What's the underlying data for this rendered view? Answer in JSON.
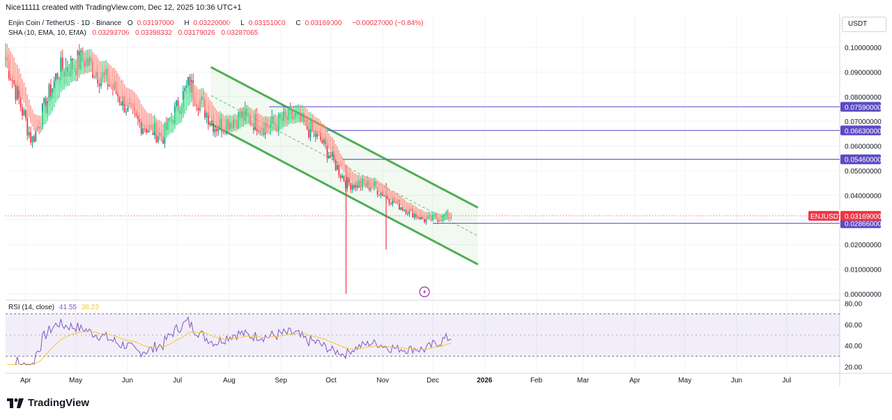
{
  "header": {
    "attribution": "Nice11111 created with TradingView.com, Dec 12, 2025 10:36 UTC+1"
  },
  "legend": {
    "symbol": "Enjin Coin / TetherUS · 1D · Binance",
    "o_label": "O",
    "o": "0.03197000",
    "h_label": "H",
    "h": "0.03220000",
    "l_label": "L",
    "l": "0.03151000",
    "c_label": "C",
    "c": "0.03169000",
    "change": "−0.00027000 (−0.84%)",
    "indicator": "SHA (10, EMA, 10, EMA)",
    "ind_v1": "0.03293706",
    "ind_v2": "0.03398332",
    "ind_v3": "0.03179026",
    "ind_v4": "0.03287065"
  },
  "currency_button": "USDT",
  "rsi": {
    "label": "RSI (14, close)",
    "value": "41.55",
    "ma_value": "38.23",
    "ticks": [
      "80.00",
      "60.00",
      "40.00",
      "20.00"
    ]
  },
  "footer": {
    "brand": "TradingView"
  },
  "colors": {
    "up": "#089981",
    "down": "#f23645",
    "channel": "#4caf50",
    "level_line": "#6a5acd",
    "level_tag": "#5b4bc4",
    "price_tag": "#f23645",
    "rsi_line": "#7e57c2",
    "rsi_ma": "#f7c530"
  },
  "chart_data": {
    "type": "candlestick",
    "symbol": "ENJUSDT",
    "y_axis_ticks": [
      "0.10000000",
      "0.09000000",
      "0.08000000",
      "0.07000000",
      "0.06000000",
      "0.05000000",
      "0.04000000",
      "0.03000000",
      "0.02000000",
      "0.01000000",
      "0.00000000"
    ],
    "ylim": [
      0.0,
      0.106
    ],
    "x_axis_labels": [
      "Apr",
      "May",
      "Jun",
      "Jul",
      "Aug",
      "Sep",
      "Oct",
      "Nov",
      "Dec",
      "2026",
      "Feb",
      "Mar",
      "Apr",
      "May",
      "Jun",
      "Jul"
    ],
    "horizontal_levels": [
      {
        "price": 0.0759,
        "label": "0.07590000"
      },
      {
        "price": 0.0663,
        "label": "0.06630000"
      },
      {
        "price": 0.0546,
        "label": "0.05460000"
      },
      {
        "price": 0.02866,
        "label": "0.02866000"
      }
    ],
    "current_price": {
      "label": "ENJUSDT",
      "value": "0.03169000",
      "price": 0.03169
    },
    "descending_channel": {
      "upper": {
        "start": [
          "2025-07-21",
          0.092
        ],
        "end": [
          "2025-12-28",
          0.035
        ]
      },
      "lower": {
        "start": [
          "2025-07-21",
          0.069
        ],
        "end": [
          "2025-12-28",
          0.012
        ]
      }
    },
    "approx_close_series": [
      {
        "month": "Apr",
        "close": 0.096
      },
      {
        "month": "Apr-mid",
        "close": 0.062
      },
      {
        "month": "May",
        "close": 0.09
      },
      {
        "month": "May-mid",
        "close": 0.095
      },
      {
        "month": "Jun",
        "close": 0.085
      },
      {
        "month": "Jun-mid",
        "close": 0.07
      },
      {
        "month": "Jul",
        "close": 0.064
      },
      {
        "month": "Jul-mid",
        "close": 0.085
      },
      {
        "month": "Aug",
        "close": 0.068
      },
      {
        "month": "Aug-mid",
        "close": 0.072
      },
      {
        "month": "Sep",
        "close": 0.068
      },
      {
        "month": "Sep-mid",
        "close": 0.072
      },
      {
        "month": "Oct",
        "close": 0.063
      },
      {
        "month": "Oct-mid",
        "close": 0.045
      },
      {
        "month": "Nov",
        "close": 0.044
      },
      {
        "month": "Nov-mid",
        "close": 0.036
      },
      {
        "month": "Dec",
        "close": 0.03
      },
      {
        "month": "Dec-12",
        "close": 0.0317
      }
    ],
    "rsi_ylim": [
      20,
      80
    ],
    "rsi_band": [
      30,
      70
    ],
    "rsi_mid": 50
  }
}
